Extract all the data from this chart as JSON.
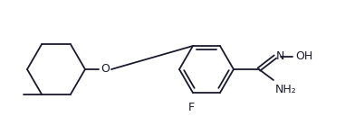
{
  "bg_color": "#ffffff",
  "line_color": "#1a1a2e",
  "text_color": "#1a1a2e",
  "label_F": "F",
  "label_O": "O",
  "label_N": "N",
  "label_OH": "OH",
  "label_NH2": "NH₂",
  "figsize": [
    3.81,
    1.5
  ],
  "dpi": 100,
  "lw": 1.3
}
